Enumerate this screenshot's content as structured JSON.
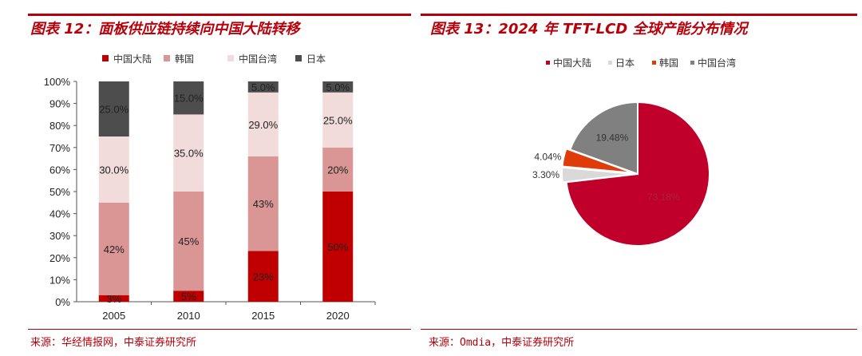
{
  "left": {
    "title": "图表 12：面板供应链持续向中国大陆转移",
    "source": "来源：华经情报网，中泰证券研究所"
  },
  "right": {
    "title": "图表 13：2024 年 TFT-LCD 全球产能分布情况",
    "source": "来源：Omdia，中泰证券研究所"
  },
  "colors": {
    "accent": "#b8000b",
    "mainland": "#c00000",
    "korea": "#d99694",
    "taiwan": "#f2dcdb",
    "japan": "#4d4d4d",
    "pie_mainland": "#c0002b",
    "pie_japan": "#d9d9d9",
    "pie_korea": "#e03c0a",
    "pie_taiwan": "#808080"
  },
  "chart_data": [
    {
      "type": "bar",
      "stacked": true,
      "title": "面板供应链持续向中国大陆转移",
      "categories": [
        "2005",
        "2010",
        "2015",
        "2020"
      ],
      "series": [
        {
          "name": "中国大陆",
          "values": [
            3,
            5,
            23,
            50
          ],
          "labels": [
            "3%",
            "5%",
            "23%",
            "50%"
          ]
        },
        {
          "name": "韩国",
          "values": [
            42,
            45,
            43,
            20
          ],
          "labels": [
            "42%",
            "45%",
            "43%",
            "20%"
          ]
        },
        {
          "name": "中国台湾",
          "values": [
            30,
            35,
            29,
            25
          ],
          "labels": [
            "30.0%",
            "35.0%",
            "29.0%",
            "25.0%"
          ]
        },
        {
          "name": "日本",
          "values": [
            25,
            15,
            5,
            5
          ],
          "labels": [
            "25.0%",
            "15.0%",
            "5.0%",
            "5.0%"
          ]
        }
      ],
      "yticks": [
        "0%",
        "10%",
        "20%",
        "30%",
        "40%",
        "50%",
        "60%",
        "70%",
        "80%",
        "90%",
        "100%"
      ],
      "ylim": [
        0,
        100
      ],
      "legend": "top"
    },
    {
      "type": "pie",
      "title": "2024 年 TFT-LCD 全球产能分布情况",
      "legend_order": [
        "中国大陆",
        "日本",
        "韩国",
        "中国台湾"
      ],
      "slices": [
        {
          "name": "中国大陆",
          "value": 73.18,
          "label": "73.18%"
        },
        {
          "name": "日本",
          "value": 3.3,
          "label": "3.30%"
        },
        {
          "name": "韩国",
          "value": 4.04,
          "label": "4.04%"
        },
        {
          "name": "中国台湾",
          "value": 19.48,
          "label": "19.48%"
        }
      ],
      "legend": "top"
    }
  ]
}
